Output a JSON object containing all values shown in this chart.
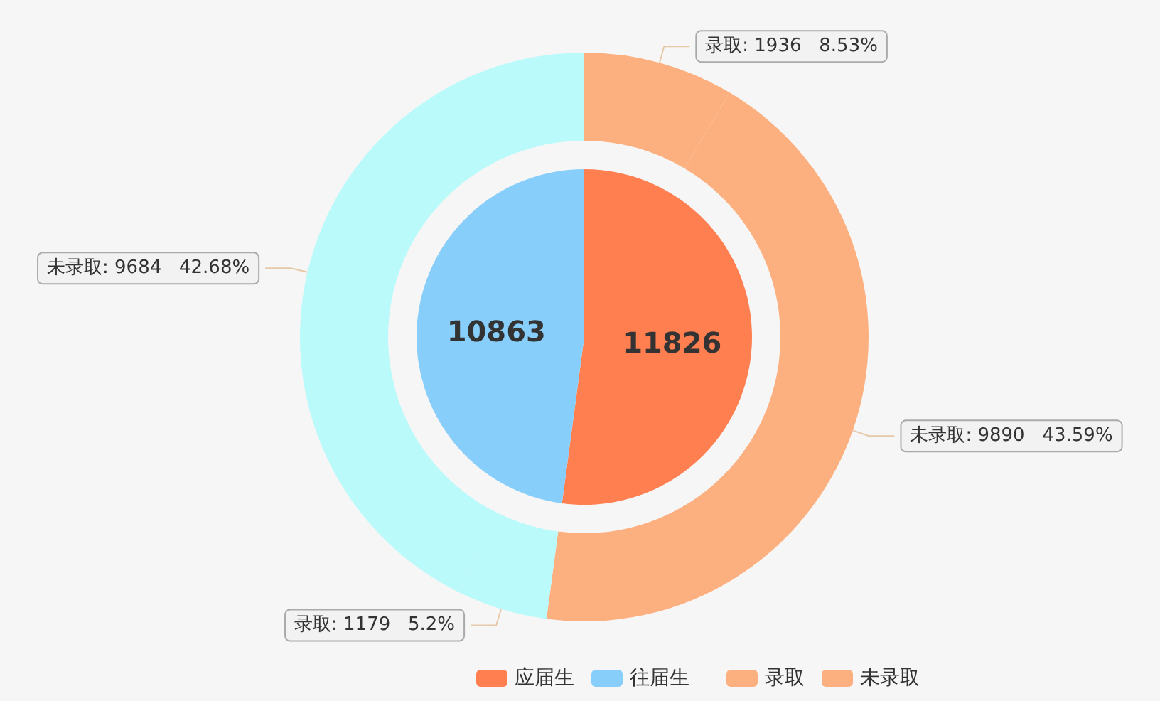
{
  "chart_data": [
    {
      "type": "pie",
      "categories": [
        "应届生",
        "往届生"
      ],
      "values": [
        11826,
        10863
      ],
      "colors": [
        "#ff7f50",
        "#87cefa"
      ],
      "data_labels": true,
      "legend": "bottom"
    },
    {
      "type": "donut",
      "categories": [
        "录取",
        "未录取",
        "录取",
        "未录取"
      ],
      "values": [
        1936,
        9890,
        1179,
        9684
      ],
      "colors": [
        "#fdb07f",
        "#fdb07f",
        "#bbfafb",
        "#bbfafb"
      ],
      "value_labels": [
        ": 1936   8.53%",
        ": 9890   43.59%",
        ": 1179   5.2%",
        ": 9684   42.68%"
      ],
      "legend": "bottom"
    }
  ]
}
